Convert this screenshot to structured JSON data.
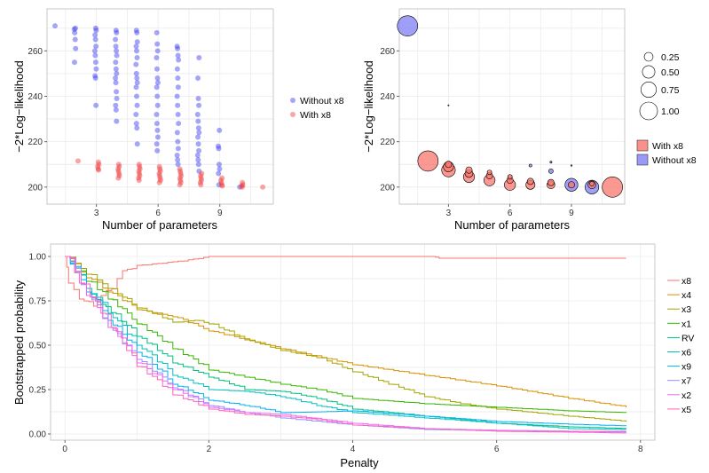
{
  "chart_data": [
    {
      "type": "scatter",
      "xlabel": "Number of parameters",
      "ylabel": "−2*Log−likelihood",
      "xlim": [
        0.6,
        11.6
      ],
      "ylim": [
        192.5,
        278.5
      ],
      "xticks": [
        3,
        6,
        9
      ],
      "yticks": [
        200,
        220,
        240,
        260
      ],
      "grid": true,
      "legend": "right",
      "series": [
        {
          "name": "Without x8",
          "color": "#3a3af0",
          "columns": [
            {
              "x": 1,
              "y": [
                271
              ]
            },
            {
              "x": 2,
              "y": [
                270,
                269.5,
                268,
                265,
                261,
                255
              ]
            },
            {
              "x": 3,
              "y": [
                270,
                269,
                267,
                265,
                262,
                260,
                258,
                255,
                252,
                249,
                248,
                236
              ]
            },
            {
              "x": 4,
              "y": [
                269,
                268,
                265,
                262,
                260,
                258,
                255,
                252,
                250,
                248,
                246,
                242,
                239,
                236,
                234,
                229
              ]
            },
            {
              "x": 5,
              "y": [
                269,
                268,
                264,
                262,
                260,
                257,
                254,
                250,
                248,
                246,
                244,
                240,
                236,
                232,
                228,
                226,
                219
              ]
            },
            {
              "x": 6,
              "y": [
                268,
                263,
                260,
                257,
                252,
                248,
                246,
                244,
                240,
                236,
                232,
                228,
                225,
                222,
                219,
                216
              ]
            },
            {
              "x": 7,
              "y": [
                262,
                261,
                258,
                256,
                252,
                248,
                244,
                240,
                236,
                232,
                228,
                224,
                220,
                217,
                214,
                212,
                210
              ]
            },
            {
              "x": 8,
              "y": [
                257,
                248,
                239,
                236,
                232,
                229,
                226,
                224,
                222,
                219,
                216,
                214,
                212,
                210,
                207
              ]
            },
            {
              "x": 9,
              "y": [
                225,
                218,
                217,
                210,
                208,
                206,
                201
              ]
            },
            {
              "x": 10,
              "y": [
                200
              ]
            }
          ]
        },
        {
          "name": "With x8",
          "color": "#f03a3a",
          "columns": [
            {
              "x": 2,
              "y": [
                211.5
              ]
            },
            {
              "x": 3,
              "y": [
                211,
                210,
                209,
                208,
                207.5
              ]
            },
            {
              "x": 4,
              "y": [
                210,
                209,
                208,
                207,
                206,
                205,
                204
              ]
            },
            {
              "x": 5,
              "y": [
                210,
                209,
                208,
                207,
                206,
                205,
                204,
                203
              ]
            },
            {
              "x": 6,
              "y": [
                209,
                208,
                207,
                206,
                205,
                204,
                203,
                202
              ]
            },
            {
              "x": 7,
              "y": [
                208,
                207,
                206,
                205,
                204,
                203,
                202,
                201
              ]
            },
            {
              "x": 8,
              "y": [
                206,
                205,
                204,
                203,
                202,
                201
              ]
            },
            {
              "x": 9,
              "y": [
                204,
                203,
                202,
                201,
                200.5
              ]
            },
            {
              "x": 10,
              "y": [
                202,
                201,
                200.5,
                200
              ]
            },
            {
              "x": 11,
              "y": [
                200
              ]
            }
          ]
        }
      ]
    },
    {
      "type": "scatter",
      "xlabel": "Number of parameters",
      "ylabel": "−2*Log−likelihood",
      "xlim": [
        0.6,
        11.6
      ],
      "ylim": [
        192.5,
        278.5
      ],
      "xticks": [
        3,
        6,
        9
      ],
      "yticks": [
        200,
        220,
        240,
        260
      ],
      "grid": true,
      "legend": "right",
      "size_legend": [
        0.25,
        0.5,
        0.75,
        1.0
      ],
      "size_legend_labels": [
        "0.25",
        "0.50",
        "0.75",
        "1.00"
      ],
      "series": [
        {
          "name": "With x8",
          "color": "#f8766d",
          "points": [
            [
              2,
              211.5,
              1.0
            ],
            [
              11,
              200,
              1.0
            ],
            [
              3,
              207.5,
              0.45
            ],
            [
              3,
              209,
              0.25
            ],
            [
              3,
              210,
              0.1
            ],
            [
              4,
              204.5,
              0.3
            ],
            [
              4,
              206,
              0.15
            ],
            [
              4,
              207.5,
              0.1
            ],
            [
              5,
              203,
              0.3
            ],
            [
              5,
              205,
              0.1
            ],
            [
              5,
              206.5,
              0.05
            ],
            [
              6,
              201,
              0.3
            ],
            [
              6,
              203,
              0.1
            ],
            [
              6,
              204.5,
              0.05
            ],
            [
              7,
              201,
              0.2
            ],
            [
              7,
              202.5,
              0.1
            ],
            [
              8,
              201,
              0.15
            ],
            [
              8,
              202,
              0.1
            ],
            [
              9,
              201,
              0.1
            ],
            [
              10,
              201,
              0.15
            ],
            [
              10,
              201.5,
              0.05
            ]
          ]
        },
        {
          "name": "Without x8",
          "color": "#7f7ff5",
          "points": [
            [
              1,
              271,
              1.0
            ],
            [
              10,
              200,
              0.45
            ],
            [
              9,
              201,
              0.4
            ],
            [
              8,
              207,
              0.05
            ],
            [
              7,
              209.5,
              0.02
            ],
            [
              8,
              211,
              0.01
            ],
            [
              9,
              209.5,
              0.005
            ],
            [
              3,
              236,
              0.003
            ]
          ]
        }
      ]
    },
    {
      "type": "line",
      "xlabel": "Penalty",
      "ylabel": "Bootstrapped probability",
      "xlim": [
        -0.2,
        8.2
      ],
      "ylim": [
        -0.035,
        1.07
      ],
      "xticks": [
        0,
        2,
        4,
        6,
        8
      ],
      "yticks": [
        0,
        0.25,
        0.5,
        0.75,
        1.0
      ],
      "ytick_labels": [
        "0.00",
        "0.25",
        "0.50",
        "0.75",
        "1.00"
      ],
      "grid": true,
      "legend": "right",
      "series": [
        {
          "name": "x8",
          "color": "#F8766D",
          "points": [
            [
              0,
              1
            ],
            [
              0.05,
              0.85
            ],
            [
              0.2,
              0.76
            ],
            [
              0.4,
              0.72
            ],
            [
              0.5,
              0.78
            ],
            [
              0.8,
              0.92
            ],
            [
              1,
              0.95
            ],
            [
              1.5,
              0.97
            ],
            [
              2,
              1
            ],
            [
              5.1,
              1
            ],
            [
              5.2,
              0.99
            ],
            [
              7.8,
              0.99
            ]
          ]
        },
        {
          "name": "x4",
          "color": "#D89000",
          "points": [
            [
              0,
              1
            ],
            [
              0.3,
              0.88
            ],
            [
              0.6,
              0.8
            ],
            [
              1,
              0.7
            ],
            [
              1.5,
              0.66
            ],
            [
              2,
              0.58
            ],
            [
              3,
              0.48
            ],
            [
              4,
              0.39
            ],
            [
              5,
              0.33
            ],
            [
              6,
              0.27
            ],
            [
              7,
              0.2
            ],
            [
              7.8,
              0.15
            ]
          ]
        },
        {
          "name": "x3",
          "color": "#A3A500",
          "points": [
            [
              0,
              1
            ],
            [
              0.3,
              0.9
            ],
            [
              0.6,
              0.82
            ],
            [
              1,
              0.71
            ],
            [
              1.5,
              0.63
            ],
            [
              1.8,
              0.64
            ],
            [
              2,
              0.62
            ],
            [
              2.5,
              0.53
            ],
            [
              3,
              0.47
            ],
            [
              3.5,
              0.43
            ],
            [
              4,
              0.35
            ],
            [
              4.5,
              0.28
            ],
            [
              5,
              0.21
            ],
            [
              5.5,
              0.17
            ],
            [
              6,
              0.14
            ],
            [
              7,
              0.1
            ],
            [
              7.8,
              0.07
            ]
          ]
        },
        {
          "name": "x1",
          "color": "#39B600",
          "points": [
            [
              0,
              1
            ],
            [
              0.3,
              0.86
            ],
            [
              0.6,
              0.76
            ],
            [
              1,
              0.62
            ],
            [
              1.5,
              0.48
            ],
            [
              2,
              0.36
            ],
            [
              2.5,
              0.32
            ],
            [
              3,
              0.28
            ],
            [
              3.5,
              0.25
            ],
            [
              4,
              0.2
            ],
            [
              5,
              0.17
            ],
            [
              5.5,
              0.16
            ],
            [
              6,
              0.15
            ],
            [
              7,
              0.13
            ],
            [
              7.8,
              0.12
            ]
          ]
        },
        {
          "name": "RV",
          "color": "#00BF7D",
          "points": [
            [
              0,
              1
            ],
            [
              0.3,
              0.8
            ],
            [
              0.5,
              0.73
            ],
            [
              1,
              0.55
            ],
            [
              1.5,
              0.4
            ],
            [
              2,
              0.32
            ],
            [
              2.5,
              0.25
            ],
            [
              3,
              0.24
            ],
            [
              3.5,
              0.2
            ],
            [
              4,
              0.14
            ],
            [
              5,
              0.1
            ],
            [
              6,
              0.06
            ],
            [
              7,
              0.04
            ],
            [
              7.8,
              0.03
            ]
          ]
        },
        {
          "name": "x6",
          "color": "#00BFC4",
          "points": [
            [
              0,
              1
            ],
            [
              0.3,
              0.82
            ],
            [
              0.6,
              0.68
            ],
            [
              1,
              0.5
            ],
            [
              1.5,
              0.33
            ],
            [
              2,
              0.25
            ],
            [
              2.5,
              0.24
            ],
            [
              3,
              0.21
            ],
            [
              3.5,
              0.16
            ],
            [
              4,
              0.12
            ],
            [
              5,
              0.09
            ],
            [
              6,
              0.06
            ],
            [
              7,
              0.03
            ],
            [
              7.8,
              0.025
            ]
          ]
        },
        {
          "name": "x9",
          "color": "#00B0F6",
          "points": [
            [
              0,
              1
            ],
            [
              0.3,
              0.8
            ],
            [
              0.6,
              0.64
            ],
            [
              1,
              0.46
            ],
            [
              1.5,
              0.28
            ],
            [
              2,
              0.19
            ],
            [
              2.5,
              0.16
            ],
            [
              3,
              0.12
            ],
            [
              4,
              0.13
            ],
            [
              5,
              0.1
            ],
            [
              6,
              0.07
            ],
            [
              7,
              0.055
            ],
            [
              7.8,
              0.045
            ]
          ]
        },
        {
          "name": "x7",
          "color": "#9590FF",
          "points": [
            [
              0,
              1
            ],
            [
              0.3,
              0.78
            ],
            [
              0.6,
              0.6
            ],
            [
              1,
              0.42
            ],
            [
              1.5,
              0.26
            ],
            [
              2,
              0.16
            ],
            [
              2.5,
              0.12
            ],
            [
              3,
              0.09
            ],
            [
              4,
              0.05
            ],
            [
              5,
              0.025
            ],
            [
              6,
              0.02
            ],
            [
              7,
              0.015
            ],
            [
              7.8,
              0.01
            ]
          ]
        },
        {
          "name": "x2",
          "color": "#E76BF3",
          "points": [
            [
              0,
              1
            ],
            [
              0.3,
              0.78
            ],
            [
              0.6,
              0.6
            ],
            [
              1,
              0.4
            ],
            [
              1.5,
              0.25
            ],
            [
              2,
              0.15
            ],
            [
              2.5,
              0.12
            ],
            [
              3,
              0.11
            ],
            [
              4,
              0.06
            ],
            [
              5,
              0.03
            ],
            [
              6,
              0.02
            ],
            [
              7,
              0.015
            ],
            [
              7.8,
              0.015
            ]
          ]
        },
        {
          "name": "x5",
          "color": "#FF62BC",
          "points": [
            [
              0,
              1
            ],
            [
              0.2,
              0.85
            ],
            [
              0.5,
              0.68
            ],
            [
              1,
              0.38
            ],
            [
              1.5,
              0.22
            ],
            [
              2,
              0.14
            ],
            [
              2.5,
              0.11
            ],
            [
              3,
              0.1
            ],
            [
              3.5,
              0.08
            ],
            [
              4,
              0.05
            ],
            [
              5,
              0.03
            ],
            [
              6,
              0.015
            ],
            [
              7,
              0.01
            ],
            [
              7.8,
              0.005
            ]
          ]
        }
      ]
    }
  ]
}
